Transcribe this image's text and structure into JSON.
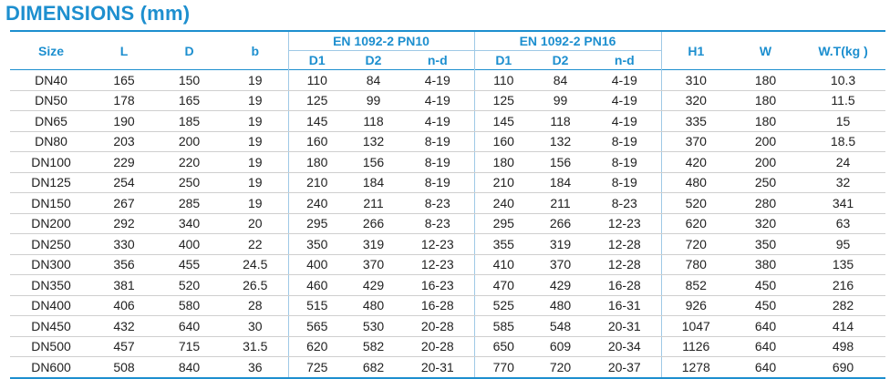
{
  "title": "DIMENSIONS (mm)",
  "headers": {
    "size": "Size",
    "L": "L",
    "D": "D",
    "b": "b",
    "group1": "EN 1092-2 PN10",
    "group2": "EN 1092-2 PN16",
    "sub": [
      "D1",
      "D2",
      "n-d"
    ],
    "H1": "H1",
    "W": "W",
    "WT": "W.T(kg )"
  },
  "rows": [
    [
      "DN40",
      "165",
      "150",
      "19",
      "110",
      "84",
      "4-19",
      "110",
      "84",
      "4-19",
      "310",
      "180",
      "10.3"
    ],
    [
      "DN50",
      "178",
      "165",
      "19",
      "125",
      "99",
      "4-19",
      "125",
      "99",
      "4-19",
      "320",
      "180",
      "11.5"
    ],
    [
      "DN65",
      "190",
      "185",
      "19",
      "145",
      "118",
      "4-19",
      "145",
      "118",
      "4-19",
      "335",
      "180",
      "15"
    ],
    [
      "DN80",
      "203",
      "200",
      "19",
      "160",
      "132",
      "8-19",
      "160",
      "132",
      "8-19",
      "370",
      "200",
      "18.5"
    ],
    [
      "DN100",
      "229",
      "220",
      "19",
      "180",
      "156",
      "8-19",
      "180",
      "156",
      "8-19",
      "420",
      "200",
      "24"
    ],
    [
      "DN125",
      "254",
      "250",
      "19",
      "210",
      "184",
      "8-19",
      "210",
      "184",
      "8-19",
      "480",
      "250",
      "32"
    ],
    [
      "DN150",
      "267",
      "285",
      "19",
      "240",
      "211",
      "8-23",
      "240",
      "211",
      "8-23",
      "520",
      "280",
      "341"
    ],
    [
      "DN200",
      "292",
      "340",
      "20",
      "295",
      "266",
      "8-23",
      "295",
      "266",
      "12-23",
      "620",
      "320",
      "63"
    ],
    [
      "DN250",
      "330",
      "400",
      "22",
      "350",
      "319",
      "12-23",
      "355",
      "319",
      "12-28",
      "720",
      "350",
      "95"
    ],
    [
      "DN300",
      "356",
      "455",
      "24.5",
      "400",
      "370",
      "12-23",
      "410",
      "370",
      "12-28",
      "780",
      "380",
      "135"
    ],
    [
      "DN350",
      "381",
      "520",
      "26.5",
      "460",
      "429",
      "16-23",
      "470",
      "429",
      "16-28",
      "852",
      "450",
      "216"
    ],
    [
      "DN400",
      "406",
      "580",
      "28",
      "515",
      "480",
      "16-28",
      "525",
      "480",
      "16-31",
      "926",
      "450",
      "282"
    ],
    [
      "DN450",
      "432",
      "640",
      "30",
      "565",
      "530",
      "20-28",
      "585",
      "548",
      "20-31",
      "1047",
      "640",
      "414"
    ],
    [
      "DN500",
      "457",
      "715",
      "31.5",
      "620",
      "582",
      "20-28",
      "650",
      "609",
      "20-34",
      "1126",
      "640",
      "498"
    ],
    [
      "DN600",
      "508",
      "840",
      "36",
      "725",
      "682",
      "20-31",
      "770",
      "720",
      "20-37",
      "1278",
      "640",
      "690"
    ]
  ]
}
